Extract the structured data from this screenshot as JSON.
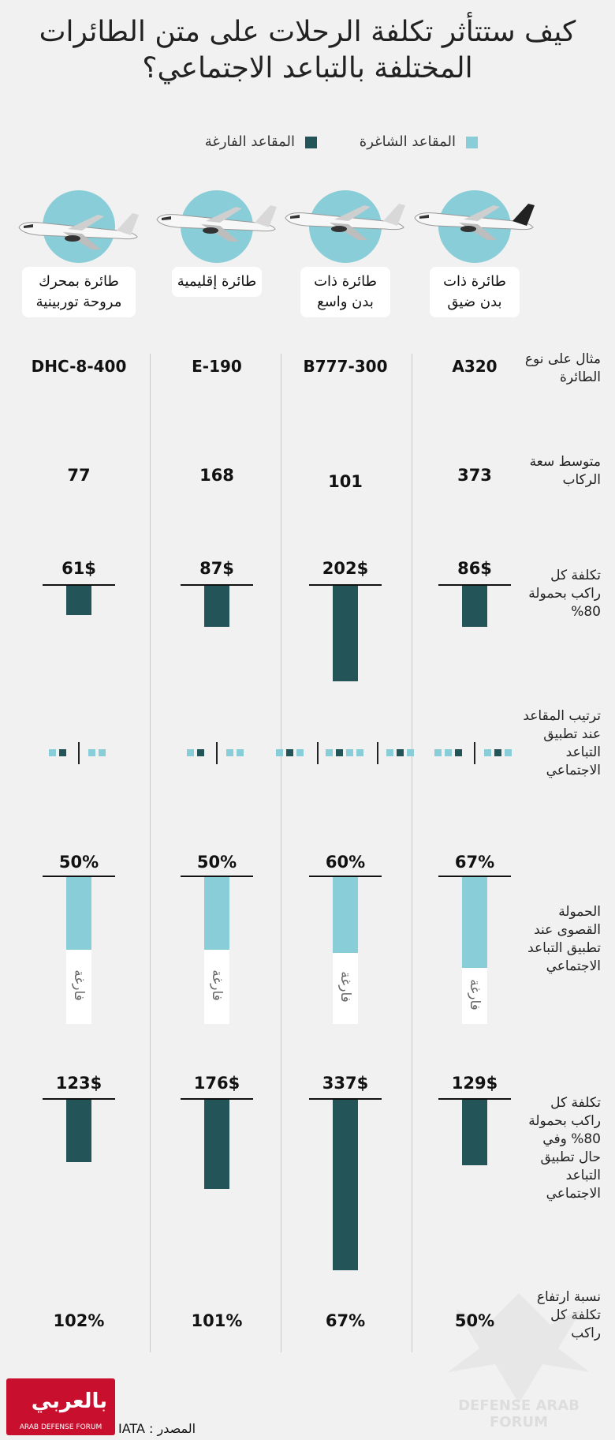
{
  "title_line1": "كيف ستتأثر تكلفة الرحلات على متن الطائرات",
  "title_line2": "المختلفة بالتباعد الاجتماعي؟",
  "legend": {
    "occupied": "المقاعد الشاغرة",
    "empty": "المقاعد الفارغة",
    "occupied_color": "#88cdd7",
    "empty_color": "#235458"
  },
  "row_labels": {
    "model": "مثال على نوع الطائرة",
    "capacity": "متوسط سعة الركاب",
    "cost80": "تكلفة كل راكب بحمولة 80%",
    "seating": "ترتيب المقاعد عند تطبيق التباعد الاجتماعي",
    "maxload": "الحمولة القصوى عند تطبيق التباعد الاجتماعي",
    "cost_sd": "تكلفة كل راكب بحمولة 80% وفي حال تطبيق التباعد الاجتماعي",
    "increase": "نسبة ارتفاع تكلفة كل راكب"
  },
  "empty_label": "فارغة",
  "source": "المصدر : IATA",
  "logo": {
    "name": "بالعربي",
    "subtitle": "ARAB DEFENSE FORUM"
  },
  "watermark": "DEFENSE ARAB FORUM",
  "chart_data": {
    "type": "bar",
    "categories": [
      "طائرة ذات بدن ضيق",
      "طائرة ذات بدن واسع",
      "طائرة إقليمية",
      "طائرة بمحرك مروحة توربينية"
    ],
    "type_label_lines": [
      [
        "طائرة ذات",
        "بدن ضيق"
      ],
      [
        "طائرة ذات",
        "بدن واسع"
      ],
      [
        "طائرة إقليمية"
      ],
      [
        "طائرة بمحرك",
        "مروحة توربينية"
      ]
    ],
    "models": [
      "A320",
      "B777-300",
      "E-190",
      "DHC-8-400"
    ],
    "capacity": [
      373,
      101,
      168,
      77
    ],
    "capacity_labels": [
      "373",
      "101",
      "168",
      "77"
    ],
    "series": [
      {
        "name": "تكلفة كل راكب بحمولة 80%",
        "values": [
          86,
          202,
          87,
          61
        ],
        "labels": [
          "86$",
          "202$",
          "87$",
          "61$"
        ]
      },
      {
        "name": "الحمولة القصوى عند تطبيق التباعد الاجتماعي",
        "values": [
          67,
          60,
          50,
          50
        ],
        "labels": [
          "67%",
          "60%",
          "50%",
          "50%"
        ]
      },
      {
        "name": "تكلفة كل راكب بحمولة 80% وفي حال تطبيق التباعد الاجتماعي",
        "values": [
          129,
          337,
          176,
          123
        ],
        "labels": [
          "129$",
          "337$",
          "176$",
          "123$"
        ]
      },
      {
        "name": "نسبة ارتفاع تكلفة كل راكب",
        "values": [
          50,
          67,
          101,
          102
        ],
        "labels": [
          "50%",
          "67%",
          "101%",
          "102%"
        ]
      }
    ],
    "seating": [
      {
        "left": [
          "o",
          "o",
          "e"
        ],
        "right": [
          "o",
          "e",
          "o"
        ]
      },
      {
        "left": [
          "o",
          "e",
          "o"
        ],
        "middle": [
          "o",
          "e",
          "o",
          "o"
        ],
        "right": [
          "o",
          "e",
          "o"
        ]
      },
      {
        "left": [
          "o",
          "e"
        ],
        "right": [
          "o",
          "o"
        ]
      },
      {
        "left": [
          "o",
          "e"
        ],
        "right": [
          "o",
          "o"
        ]
      }
    ]
  }
}
